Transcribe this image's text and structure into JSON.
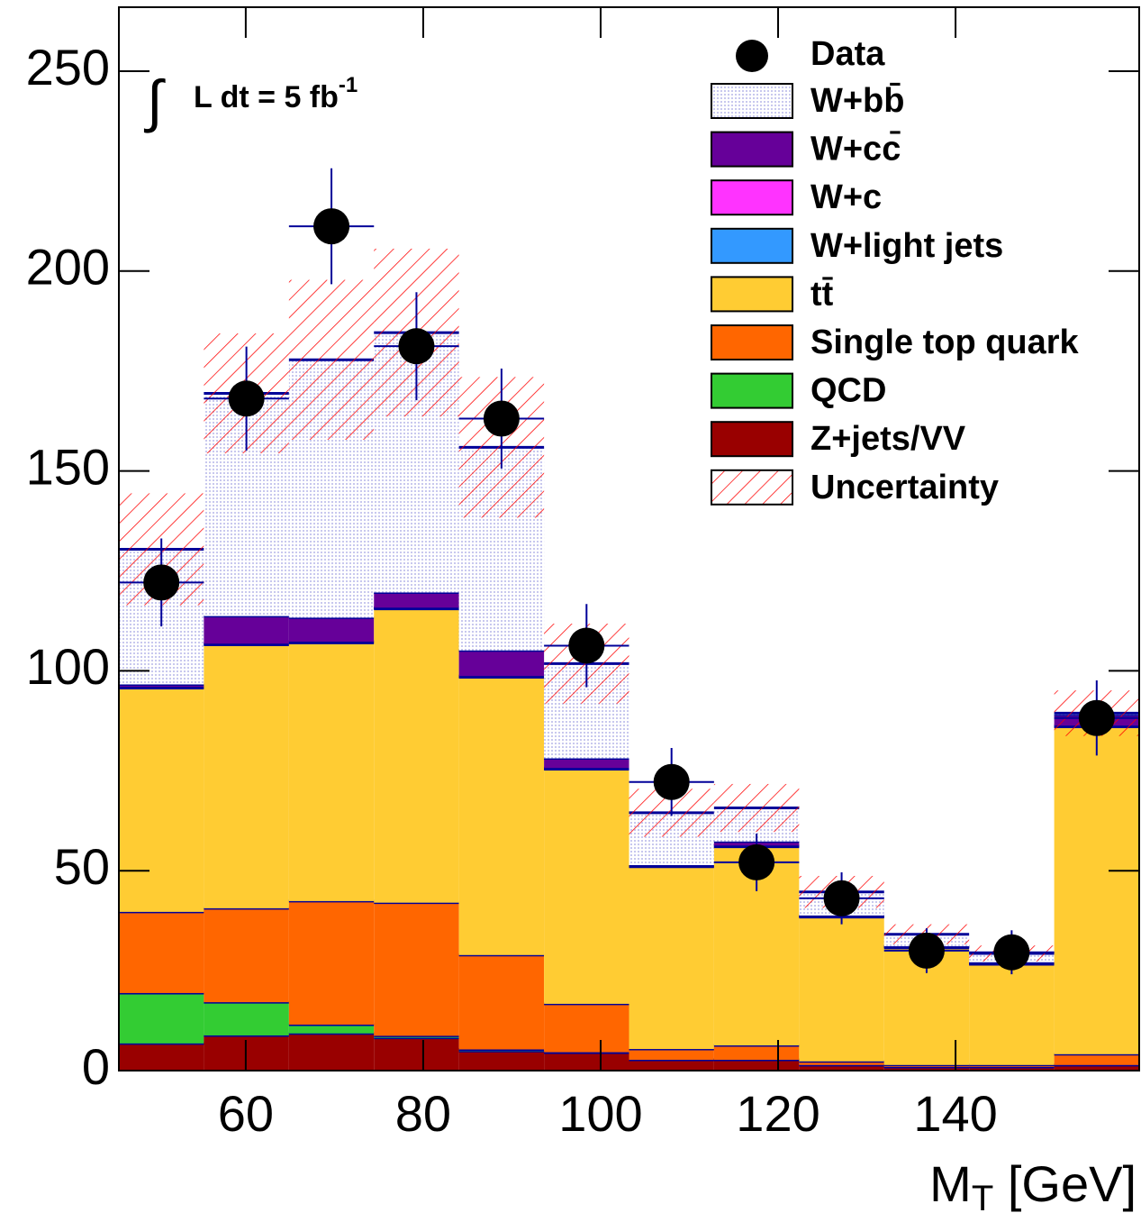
{
  "chart_data": {
    "type": "stacked_histogram",
    "annotation": {
      "integral": "∫",
      "text": "L dt = 5 fb",
      "sup": "-1"
    },
    "x_label": {
      "main": "M",
      "sub": "T",
      "unit": " [GeV]"
    },
    "bins": [
      45.7,
      55.28,
      64.87,
      74.45,
      84.03,
      93.62,
      103.2,
      112.78,
      122.37,
      131.95,
      141.53,
      151.12,
      160.7
    ],
    "xlim": [
      45.7,
      160.7
    ],
    "xticks": [
      60,
      80,
      100,
      120,
      140
    ],
    "ylim": [
      0,
      266
    ],
    "yticks": [
      0,
      50,
      100,
      150,
      200,
      250
    ],
    "series": [
      {
        "name": "Z+jets/VV",
        "color": "#990000",
        "values": [
          6.8,
          8.8,
          9.3,
          8.2,
          4.9,
          4.5,
          2.7,
          2.7,
          1.4,
          0.9,
          0.9,
          1.4
        ]
      },
      {
        "name": "QCD",
        "color": "#33cc33",
        "values": [
          12.6,
          8.3,
          2.2,
          0.5,
          0.4,
          0.1,
          0,
          0,
          0,
          0,
          0,
          0
        ]
      },
      {
        "name": "Single top quark",
        "color": "#ff6600",
        "values": [
          20.3,
          23.5,
          30.9,
          33.3,
          23.6,
          12.1,
          2.7,
          3.6,
          0.9,
          0.5,
          0.5,
          2.7
        ]
      },
      {
        "name": "tt̄",
        "color": "#ffcc33",
        "values": [
          56.0,
          65.9,
          64.6,
          73.5,
          69.5,
          58.7,
          45.6,
          49.7,
          36.1,
          29.3,
          25.2,
          81.9
        ]
      },
      {
        "name": "W+light jets",
        "color": "#3399ff",
        "values": [
          0.2,
          0.2,
          0.2,
          0.2,
          0.2,
          0.2,
          0.2,
          0.2,
          0.2,
          0.2,
          0.2,
          0.2
        ]
      },
      {
        "name": "W+c",
        "color": "#ff33ff",
        "values": [
          0.1,
          0.1,
          0.1,
          0.1,
          0.1,
          0.1,
          0.1,
          0.1,
          0.1,
          0.1,
          0.1,
          0.1
        ]
      },
      {
        "name": "W+cc̄",
        "color": "#660099",
        "values": [
          0.6,
          6.9,
          6.0,
          3.8,
          6.4,
          2.4,
          0.1,
          1.0,
          0.1,
          0.1,
          0.2,
          2.7
        ]
      },
      {
        "name": "W+bb̄",
        "color": "#e6e6fa",
        "values": [
          33.8,
          55.7,
          64.5,
          65.0,
          50.8,
          23.7,
          13.1,
          8.4,
          5.9,
          3.0,
          2.2,
          0.4
        ]
      }
    ],
    "uncertainty": {
      "name": "Uncertainty",
      "color": "#ff0000",
      "values": [
        14,
        15,
        20,
        21,
        17.6,
        10,
        6,
        6,
        4,
        2.5,
        2,
        5.7
      ]
    },
    "data": {
      "name": "Data",
      "color": "#000000",
      "values": [
        122.1,
        168.1,
        211.2,
        181.2,
        163.1,
        106.3,
        72.2,
        52.1,
        43.1,
        30.0,
        29.6,
        88.2
      ],
      "errors": [
        11,
        13,
        14.5,
        13.5,
        12.5,
        10.4,
        8.5,
        7.2,
        6.5,
        5.6,
        5.5,
        9.4
      ]
    }
  }
}
